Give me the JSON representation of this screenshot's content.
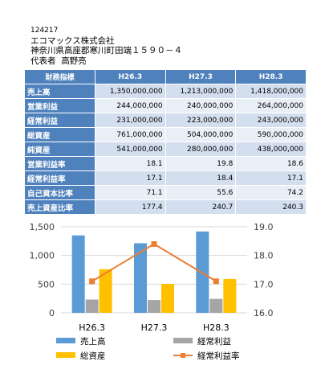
{
  "header": {
    "code": "124217",
    "company": "エコマックス株式会社",
    "address": "神奈川県高座郡寒川町田端１５９０－４",
    "rep_label": "代表者",
    "rep_name": "高野亮"
  },
  "table": {
    "corner_label": "財務指標",
    "columns": [
      "H26.3",
      "H27.3",
      "H28.3"
    ],
    "rows": [
      {
        "label": "売上高",
        "values": [
          "1,350,000,000",
          "1,213,000,000",
          "1,418,000,000"
        ]
      },
      {
        "label": "営業利益",
        "values": [
          "244,000,000",
          "240,000,000",
          "264,000,000"
        ]
      },
      {
        "label": "経常利益",
        "values": [
          "231,000,000",
          "223,000,000",
          "243,000,000"
        ]
      },
      {
        "label": "総資産",
        "values": [
          "761,000,000",
          "504,000,000",
          "590,000,000"
        ]
      },
      {
        "label": "純資産",
        "values": [
          "541,000,000",
          "280,000,000",
          "438,000,000"
        ]
      },
      {
        "label": "営業利益率",
        "values": [
          "18.1",
          "19.8",
          "18.6"
        ]
      },
      {
        "label": "経常利益率",
        "values": [
          "17.1",
          "18.4",
          "17.1"
        ]
      },
      {
        "label": "自己資本比率",
        "values": [
          "71.1",
          "55.6",
          "74.2"
        ]
      },
      {
        "label": "売上資産比率",
        "values": [
          "177.4",
          "240.7",
          "240.3"
        ]
      }
    ]
  },
  "chart_data": {
    "type": "bar",
    "categories": [
      "H26.3",
      "H27.3",
      "H28.3"
    ],
    "series": [
      {
        "name": "売上高",
        "kind": "bar",
        "axis": "left",
        "color": "#5b9bd5",
        "values": [
          1350,
          1213,
          1418
        ]
      },
      {
        "name": "経常利益",
        "kind": "bar",
        "axis": "left",
        "color": "#a5a5a5",
        "values": [
          231,
          223,
          243
        ]
      },
      {
        "name": "総資産",
        "kind": "bar",
        "axis": "left",
        "color": "#ffc000",
        "values": [
          761,
          504,
          590
        ]
      },
      {
        "name": "経常利益率",
        "kind": "line",
        "axis": "right",
        "color": "#ed7d31",
        "values": [
          17.1,
          18.4,
          17.1
        ]
      }
    ],
    "y_left": {
      "min": 0,
      "max": 1500,
      "ticks": [
        0,
        500,
        1000,
        1500
      ],
      "tick_labels": [
        "0",
        "500",
        "1,000",
        "1,500"
      ]
    },
    "y_right": {
      "min": 16.0,
      "max": 19.0,
      "ticks": [
        16,
        17,
        18,
        19
      ],
      "tick_labels": [
        "16.0",
        "17.0",
        "18.0",
        "19.0"
      ]
    },
    "grid": true,
    "legend_position": "bottom",
    "legend_order": [
      "売上高",
      "経常利益",
      "総資産",
      "経常利益率"
    ]
  }
}
